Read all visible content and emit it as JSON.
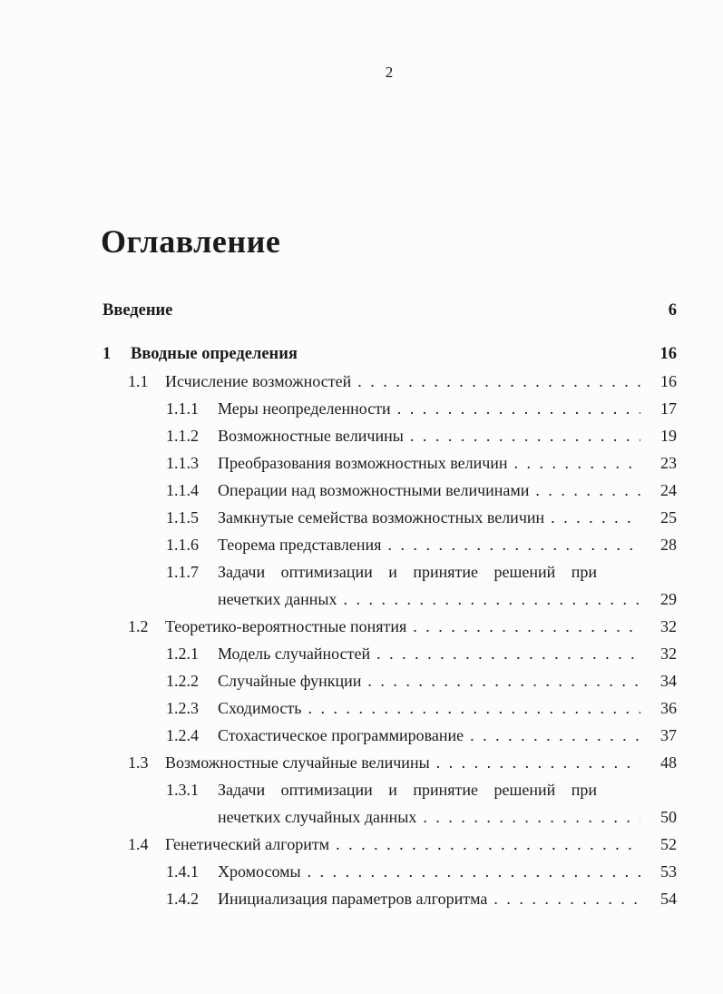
{
  "page": {
    "number": "2",
    "title": "Оглавление"
  },
  "toc": {
    "entries": [
      {
        "level": "chapter",
        "num": "",
        "label": "Введение",
        "page": "6"
      },
      {
        "level": "chapter",
        "num": "1",
        "label": "Вводные определения",
        "page": "16"
      },
      {
        "level": "section",
        "num": "1.1",
        "label": "Исчисление возможностей",
        "page": "16"
      },
      {
        "level": "subsection",
        "num": "1.1.1",
        "label": "Меры неопределенности",
        "page": "17"
      },
      {
        "level": "subsection",
        "num": "1.1.2",
        "label": "Возможностные величины",
        "page": "19"
      },
      {
        "level": "subsection",
        "num": "1.1.3",
        "label": "Преобразования возможностных величин",
        "page": "23"
      },
      {
        "level": "subsection",
        "num": "1.1.4",
        "label": "Операции над возможностными величинами",
        "page": "24"
      },
      {
        "level": "subsection",
        "num": "1.1.5",
        "label": "Замкнутые семейства возможностных величин",
        "page": "25"
      },
      {
        "level": "subsection",
        "num": "1.1.6",
        "label": "Теорема представления",
        "page": "28"
      },
      {
        "level": "subsection",
        "num": "1.1.7",
        "label_lines": [
          "Задачи оптимизации и принятие решений при",
          "нечетких данных"
        ],
        "page": "29"
      },
      {
        "level": "section",
        "num": "1.2",
        "label": "Теоретико-вероятностные понятия",
        "page": "32"
      },
      {
        "level": "subsection",
        "num": "1.2.1",
        "label": "Модель случайностей",
        "page": "32"
      },
      {
        "level": "subsection",
        "num": "1.2.2",
        "label": "Случайные функции",
        "page": "34"
      },
      {
        "level": "subsection",
        "num": "1.2.3",
        "label": "Сходимость",
        "page": "36"
      },
      {
        "level": "subsection",
        "num": "1.2.4",
        "label": "Стохастическое программирование",
        "page": "37"
      },
      {
        "level": "section",
        "num": "1.3",
        "label": "Возможностные случайные величины",
        "page": "48"
      },
      {
        "level": "subsection",
        "num": "1.3.1",
        "label_lines": [
          "Задачи оптимизации и принятие решений при",
          "нечетких случайных данных"
        ],
        "page": "50"
      },
      {
        "level": "section",
        "num": "1.4",
        "label": "Генетический алгоритм",
        "page": "52"
      },
      {
        "level": "subsection",
        "num": "1.4.1",
        "label": "Хромосомы",
        "page": "53"
      },
      {
        "level": "subsection",
        "num": "1.4.2",
        "label": "Инициализация параметров алгоритма",
        "page": "54"
      }
    ]
  }
}
